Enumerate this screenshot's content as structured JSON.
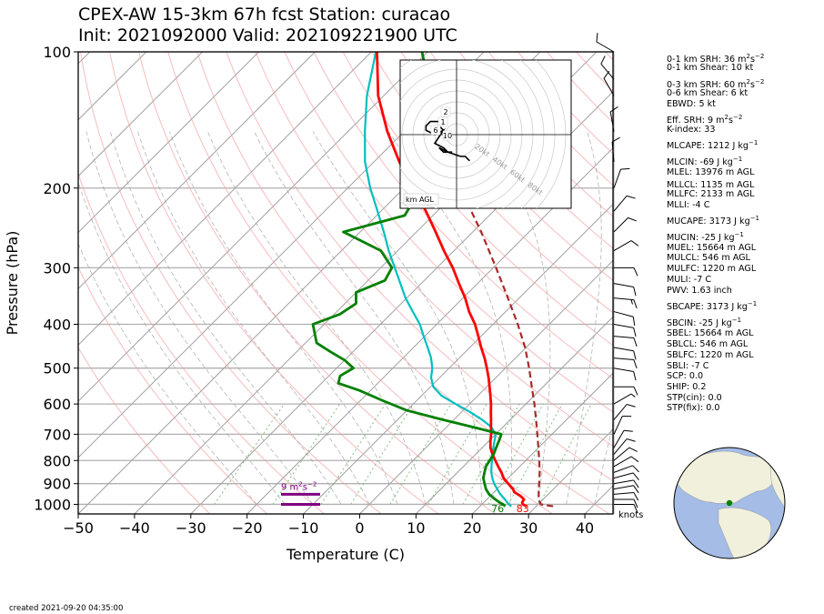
{
  "title_line1": "CPEX-AW 15-3km  67h fcst  Station: curacao",
  "title_line2": "Init: 2021092000  Valid: 202109221900 UTC",
  "footer": "created 2021-09-20 04:35:00",
  "colors": {
    "temp": "#ff0000",
    "dewpoint": "#008000",
    "wetbulb": "#00bfbf",
    "parcel": "#a52a2a",
    "srh_bar": "#800080",
    "isotherm": "#a0a0a0",
    "dry_adiabat": "#f4a0a0",
    "moist_adiabat": "#a0a0a0",
    "mixing_ratio": "#7fbf7f"
  },
  "indices": [
    {
      "label": "0-1 km SRH: 36 m",
      "sup": "2",
      "mid": "s",
      "sup2": "−2"
    },
    {
      "label": "0-1 km Shear: 10 kt"
    },
    {
      "label": "0-3 km SRH: 60 m",
      "sup": "2",
      "mid": "s",
      "sup2": "−2"
    },
    {
      "label": "0-6 km Shear: 6 kt"
    },
    {
      "label": "EBWD: 5 kt"
    },
    {
      "label": "Eff. SRH: 9 m",
      "sup": "2",
      "mid": "s",
      "sup2": "−2"
    },
    {
      "label": "K-index: 33"
    },
    {
      "label": "MLCAPE: 1212 J kg",
      "sup": "−1"
    },
    {
      "label": "MLCIN: -69 J kg",
      "sup": "−1"
    },
    {
      "label": "MLEL: 13976 m AGL"
    },
    {
      "label": "MLLCL: 1135 m AGL"
    },
    {
      "label": "MLLFC: 2133 m AGL"
    },
    {
      "label": "MLLI: -4 C"
    },
    {
      "label": "MUCAPE: 3173 J kg",
      "sup": "−1"
    },
    {
      "label": "MUCIN: -25 J kg",
      "sup": "−1"
    },
    {
      "label": "MUEL: 15664 m AGL"
    },
    {
      "label": "MULCL: 546 m AGL"
    },
    {
      "label": "MULFC: 1220 m AGL"
    },
    {
      "label": "MULI: -7 C"
    },
    {
      "label": "PWV: 1.63 inch"
    },
    {
      "label": "SBCAPE: 3173 J kg",
      "sup": "−1"
    },
    {
      "label": "SBCIN: -25 J kg",
      "sup": "−1"
    },
    {
      "label": "SBEL: 15664 m AGL"
    },
    {
      "label": "SBLCL: 546 m AGL"
    },
    {
      "label": "SBLFC: 1220 m AGL"
    },
    {
      "label": "SBLI: -7 C"
    },
    {
      "label": "SCP: 0.0"
    },
    {
      "label": "SHIP: 0.2"
    },
    {
      "label": "STP(cin): 0.0"
    },
    {
      "label": "STP(fix): 0.0"
    }
  ],
  "chart_data": {
    "type": "line",
    "xlabel": "Temperature (C)",
    "ylabel": "Pressure (hPa)",
    "xlim": [
      -50,
      45
    ],
    "ylim": [
      1050,
      100
    ],
    "log_y": true,
    "skew": true,
    "grid": true,
    "x_ticks": [
      -50,
      -40,
      -30,
      -20,
      -10,
      0,
      10,
      20,
      30,
      40
    ],
    "y_ticks": [
      100,
      200,
      300,
      400,
      500,
      600,
      700,
      800,
      900,
      1000
    ],
    "surface_temp_label": "83",
    "surface_dewpoint_label": "76",
    "wind_units_label": "knots",
    "srh_label": "9 m",
    "srh_label_sup": "2",
    "srh_label_mid": "s",
    "srh_label_sup2": "−2",
    "series": [
      {
        "key": "temperature",
        "p": [
          1010,
          1000,
          990,
          975,
          960,
          950,
          940,
          925,
          900,
          875,
          850,
          825,
          800,
          775,
          750,
          725,
          700,
          675,
          650,
          625,
          600,
          575,
          550,
          525,
          500,
          475,
          450,
          425,
          400,
          375,
          350,
          325,
          300,
          275,
          250,
          225,
          200,
          175,
          150,
          125,
          100
        ],
        "t": [
          28.3,
          27.3,
          26.8,
          26.6,
          25.5,
          24.6,
          23.6,
          22.8,
          21.0,
          19.2,
          17.8,
          16.2,
          14.6,
          13.0,
          11.5,
          10.3,
          9.2,
          7.9,
          6.6,
          5.2,
          3.8,
          2.2,
          0.5,
          -1.3,
          -3.3,
          -5.5,
          -8.0,
          -10.5,
          -13.2,
          -16.5,
          -19.6,
          -23.3,
          -27.2,
          -31.8,
          -36.6,
          -42.0,
          -48.3,
          -55.5,
          -63.0,
          -71.0,
          -79.0
        ]
      },
      {
        "key": "dewpoint",
        "p": [
          1010,
          1000,
          990,
          975,
          950,
          925,
          900,
          875,
          850,
          825,
          800,
          775,
          750,
          725,
          700,
          680,
          650,
          620,
          590,
          560,
          540,
          520,
          500,
          480,
          460,
          440,
          400,
          380,
          360,
          340,
          320,
          300,
          275,
          250,
          230,
          200,
          180,
          150,
          130,
          120,
          110,
          100
        ],
        "t": [
          24.5,
          23.8,
          22.8,
          21.5,
          19.5,
          18.0,
          16.8,
          15.6,
          14.8,
          14.0,
          13.6,
          13.2,
          12.5,
          11.8,
          11.0,
          6.0,
          -2.0,
          -10.0,
          -16.0,
          -22.0,
          -27.0,
          -28.0,
          -27.0,
          -30.0,
          -34.0,
          -38.0,
          -42.0,
          -39.0,
          -38.0,
          -40.0,
          -37.0,
          -38.0,
          -43.0,
          -53.0,
          -45.0,
          -47.0,
          -52.0,
          -57.0,
          -60.0,
          -64.0,
          -67.0,
          -71.0
        ]
      },
      {
        "key": "wetbulb",
        "p": [
          1010,
          1000,
          975,
          950,
          925,
          900,
          875,
          850,
          825,
          800,
          775,
          750,
          725,
          700,
          675,
          650,
          625,
          600,
          575,
          550,
          525,
          500,
          475,
          450,
          425,
          400,
          375,
          350,
          325,
          300,
          275,
          250,
          225,
          200,
          175,
          150,
          125,
          100
        ],
        "t": [
          25.6,
          24.8,
          23.2,
          21.5,
          20.0,
          18.5,
          17.2,
          16.0,
          15.0,
          14.0,
          13.0,
          12.0,
          11.0,
          10.0,
          8.0,
          5.0,
          1.5,
          -2.5,
          -6.5,
          -9.5,
          -11.5,
          -13.0,
          -15.0,
          -17.5,
          -20.2,
          -23.0,
          -26.5,
          -30.2,
          -33.7,
          -37.5,
          -41.6,
          -45.8,
          -50.6,
          -56.0,
          -61.6,
          -67.0,
          -73.0,
          -79.2
        ]
      },
      {
        "key": "parcel",
        "p": [
          1010,
          1000,
          975,
          950,
          925,
          900,
          850,
          800,
          750,
          700,
          650,
          600,
          550,
          500,
          450,
          400,
          350,
          300,
          250,
          200,
          150,
          100
        ],
        "t": [
          33,
          30.5,
          29.2,
          28.3,
          27.4,
          26.5,
          24.6,
          22.4,
          20.0,
          17.4,
          14.6,
          11.5,
          8.0,
          4.2,
          -0.2,
          -5.6,
          -12.0,
          -19.5,
          -28.5,
          -40.0,
          -54.0,
          -71.0
        ]
      }
    ],
    "wind_barbs": [
      {
        "p": 1000,
        "spd": 10,
        "dir": 90
      },
      {
        "p": 975,
        "spd": 10,
        "dir": 90
      },
      {
        "p": 950,
        "spd": 10,
        "dir": 85
      },
      {
        "p": 925,
        "spd": 10,
        "dir": 80
      },
      {
        "p": 900,
        "spd": 10,
        "dir": 80
      },
      {
        "p": 875,
        "spd": 10,
        "dir": 75
      },
      {
        "p": 850,
        "spd": 10,
        "dir": 70
      },
      {
        "p": 825,
        "spd": 10,
        "dir": 60
      },
      {
        "p": 800,
        "spd": 10,
        "dir": 50
      },
      {
        "p": 775,
        "spd": 10,
        "dir": 40
      },
      {
        "p": 750,
        "spd": 10,
        "dir": 30
      },
      {
        "p": 700,
        "spd": 10,
        "dir": 25
      },
      {
        "p": 650,
        "spd": 10,
        "dir": 40
      },
      {
        "p": 600,
        "spd": 5,
        "dir": 60
      },
      {
        "p": 550,
        "spd": 10,
        "dir": 90
      },
      {
        "p": 500,
        "spd": 10,
        "dir": 100
      },
      {
        "p": 475,
        "spd": 10,
        "dir": 95
      },
      {
        "p": 450,
        "spd": 10,
        "dir": 100
      },
      {
        "p": 425,
        "spd": 10,
        "dir": 95
      },
      {
        "p": 400,
        "spd": 10,
        "dir": 100
      },
      {
        "p": 375,
        "spd": 10,
        "dir": 105
      },
      {
        "p": 350,
        "spd": 15,
        "dir": 95
      },
      {
        "p": 325,
        "spd": 10,
        "dir": 100
      },
      {
        "p": 300,
        "spd": 10,
        "dir": 90
      },
      {
        "p": 275,
        "spd": 10,
        "dir": 60
      },
      {
        "p": 250,
        "spd": 10,
        "dir": 45
      },
      {
        "p": 225,
        "spd": 10,
        "dir": 40
      },
      {
        "p": 200,
        "spd": 10,
        "dir": 20
      },
      {
        "p": 175,
        "spd": 10,
        "dir": 355
      },
      {
        "p": 150,
        "spd": 10,
        "dir": 350
      },
      {
        "p": 125,
        "spd": 10,
        "dir": 330
      },
      {
        "p": 115,
        "spd": 10,
        "dir": 320
      },
      {
        "p": 100,
        "spd": 10,
        "dir": 300
      }
    ],
    "hodograph": {
      "label": "km AGL",
      "ring_labels": [
        "20kt",
        "40kt",
        "60kt",
        "80kt"
      ],
      "height_labels": [
        "2",
        "1",
        "6",
        "10"
      ],
      "u": [
        -3,
        -4,
        -4,
        -6,
        -7,
        -7,
        -5,
        -3,
        -5,
        -3,
        -2,
        -1,
        -3,
        -4,
        -2,
        1,
        2,
        3,
        3
      ],
      "v": [
        1,
        2,
        3,
        3,
        2,
        1,
        0,
        1,
        -2,
        -3,
        -4,
        -4,
        -4,
        -3,
        -4,
        -5,
        -5,
        -6,
        -6
      ]
    }
  },
  "globe": {
    "marker_label": "station marker"
  }
}
